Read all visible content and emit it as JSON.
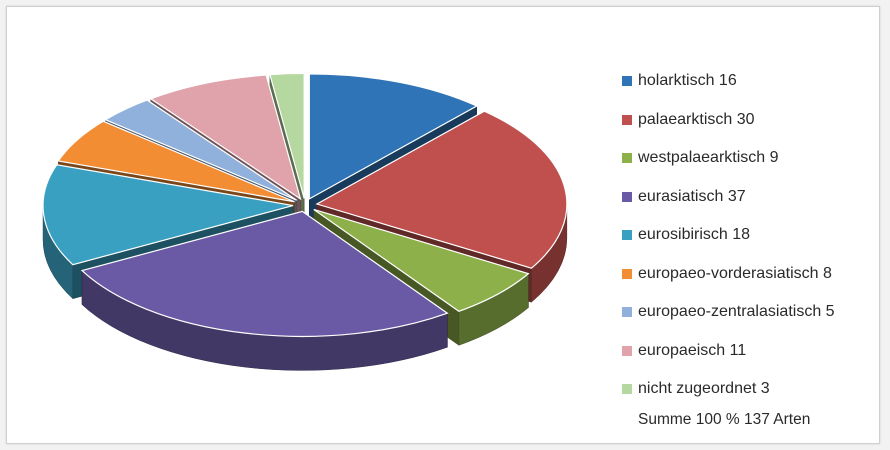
{
  "chart_data": {
    "type": "pie",
    "title": "",
    "total_label": "Summe 100 % 137 Arten",
    "total": 137,
    "series": [
      {
        "name": "holarktisch",
        "value": 16,
        "color": "#2f74b6"
      },
      {
        "name": "palaearktisch",
        "value": 30,
        "color": "#c0504d"
      },
      {
        "name": "westpalaearktisch",
        "value": 9,
        "color": "#8db04a"
      },
      {
        "name": "eurasiatisch",
        "value": 37,
        "color": "#6a5aa5"
      },
      {
        "name": "eurosibirisch",
        "value": 18,
        "color": "#3aa0c2"
      },
      {
        "name": "europaeo-vorderasiatisch",
        "value": 8,
        "color": "#f28d33"
      },
      {
        "name": "europaeo-zentralasiatisch",
        "value": 5,
        "color": "#8fb1dc"
      },
      {
        "name": "europaeisch",
        "value": 11,
        "color": "#e0a3ab"
      },
      {
        "name": "nicht zugeordnet",
        "value": 3,
        "color": "#b5d7a0"
      }
    ],
    "legend": {
      "position": "right",
      "labels": [
        "holarktisch 16",
        "palaearktisch 30",
        "westpalaearktisch 9",
        "eurasiatisch 37",
        "eurosibirisch 18",
        "europaeo-vorderasiatisch 8",
        "europaeo-zentralasiatisch 5",
        "europaeisch 11",
        "nicht zugeordnet 3"
      ]
    },
    "style": "3d-exploded"
  }
}
